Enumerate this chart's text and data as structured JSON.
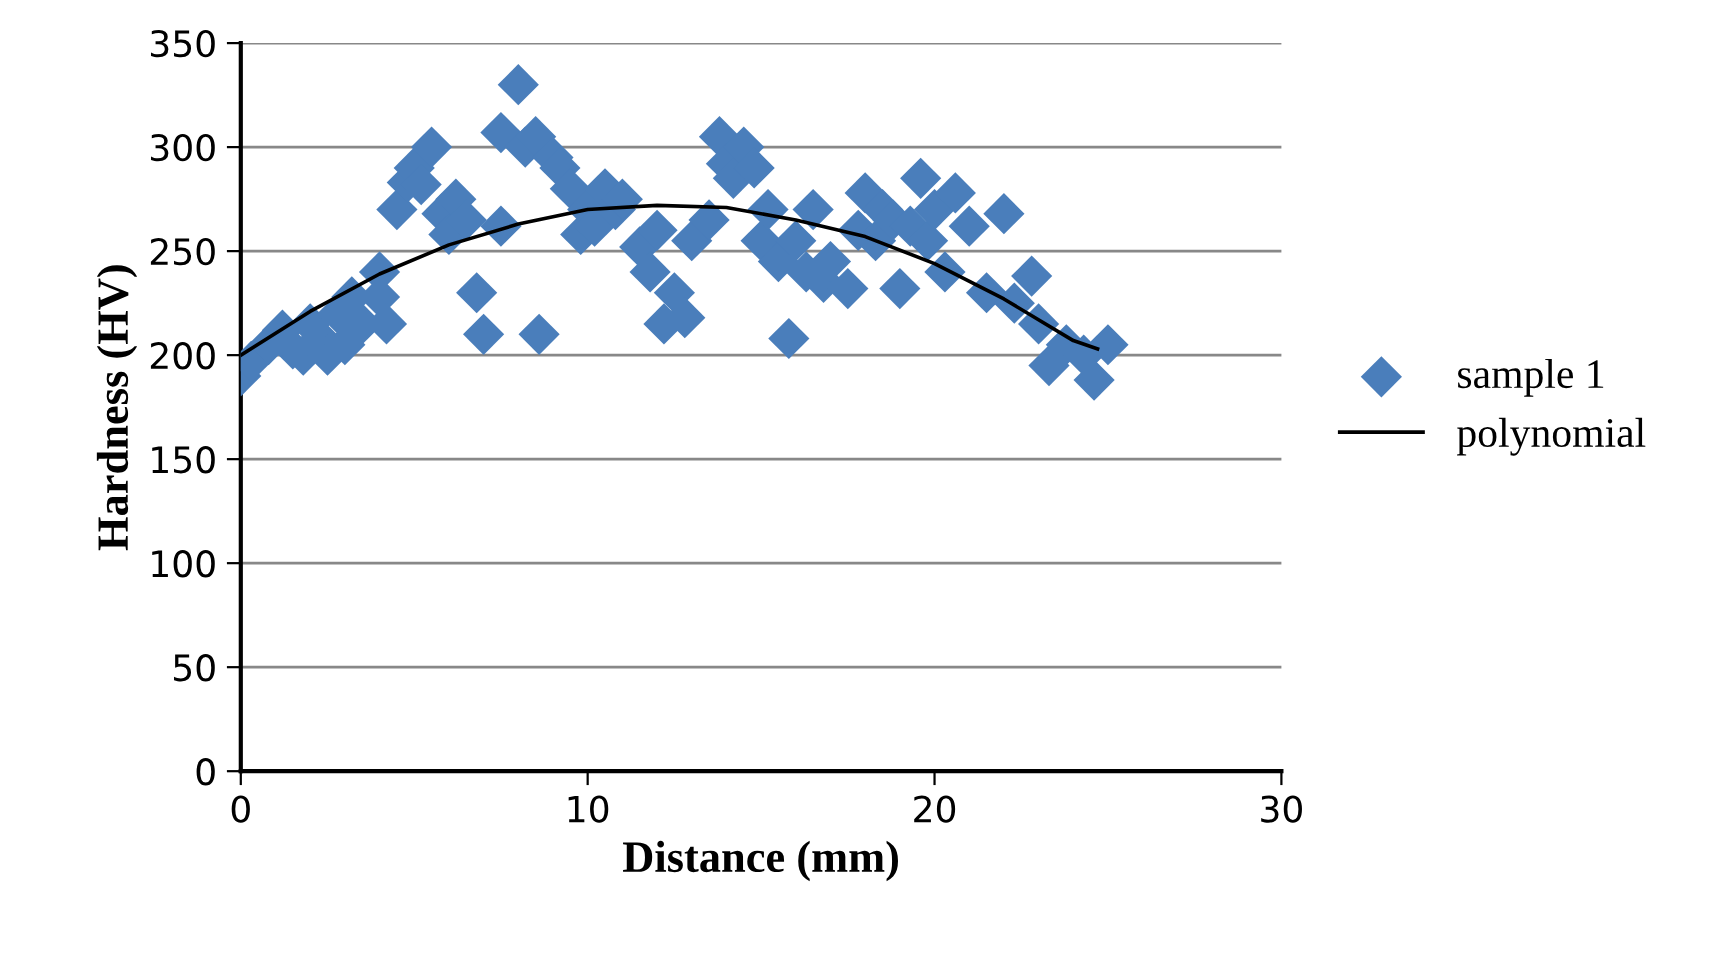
{
  "chart_data": {
    "type": "scatter",
    "xlabel": "Distance (mm)",
    "ylabel": "Hardness (HV)",
    "xlim": [
      0,
      30
    ],
    "xticks": [
      0,
      10,
      20,
      30
    ],
    "ylim": [
      0,
      350
    ],
    "yticks": [
      0,
      50,
      100,
      150,
      200,
      250,
      300,
      350
    ],
    "grid": "y",
    "legend": "right",
    "marker": "diamond",
    "series": [
      {
        "name": "sample 1",
        "color": "#4a7ebb",
        "x": [
          0,
          0.3,
          0.8,
          1.2,
          1.5,
          1.8,
          2,
          2.3,
          2.5,
          2.8,
          3,
          3.2,
          3.5,
          4,
          4,
          4.2,
          4.5,
          4.8,
          5,
          5.2,
          5.5,
          5.8,
          6,
          6.2,
          6.5,
          6.8,
          7,
          7.5,
          7.5,
          8,
          8.2,
          8.5,
          8.6,
          9,
          9.2,
          9.5,
          9.8,
          10,
          10.2,
          10.5,
          10.8,
          11,
          11.5,
          11.8,
          12,
          12.2,
          12.5,
          12.8,
          13,
          13.5,
          13.8,
          14,
          14.2,
          14.5,
          14.8,
          15,
          15.2,
          15.5,
          15.8,
          16,
          16.3,
          16.5,
          16.8,
          17,
          17.5,
          17.8,
          18,
          18.3,
          18.5,
          18.8,
          19,
          19.3,
          19.6,
          19.8,
          20,
          20.3,
          20.6,
          21,
          21.5,
          22,
          22.3,
          22.8,
          23,
          23.3,
          23.8,
          24.3,
          24.6,
          25
        ],
        "values": [
          190,
          197,
          205,
          212,
          203,
          200,
          215,
          208,
          200,
          220,
          205,
          228,
          215,
          240,
          228,
          215,
          270,
          283,
          290,
          282,
          300,
          268,
          258,
          275,
          265,
          230,
          210,
          262,
          307,
          330,
          300,
          305,
          210,
          295,
          290,
          280,
          258,
          270,
          262,
          280,
          270,
          275,
          252,
          240,
          260,
          215,
          230,
          218,
          255,
          265,
          305,
          292,
          285,
          300,
          290,
          255,
          270,
          245,
          208,
          255,
          240,
          270,
          235,
          245,
          232,
          260,
          278,
          255,
          270,
          265,
          232,
          262,
          285,
          255,
          270,
          240,
          278,
          262,
          230,
          268,
          225,
          238,
          215,
          195,
          205,
          200,
          188,
          205
        ]
      },
      {
        "name": "polynomial",
        "type": "line",
        "color": "#000000",
        "marker": "none",
        "x": [
          0,
          2,
          4,
          6,
          8,
          10,
          12,
          14,
          16,
          18,
          20,
          22,
          24,
          24.7
        ],
        "values": [
          200,
          221,
          239,
          253,
          263,
          270,
          272,
          271,
          265,
          257,
          244,
          227,
          207,
          203
        ]
      }
    ]
  }
}
